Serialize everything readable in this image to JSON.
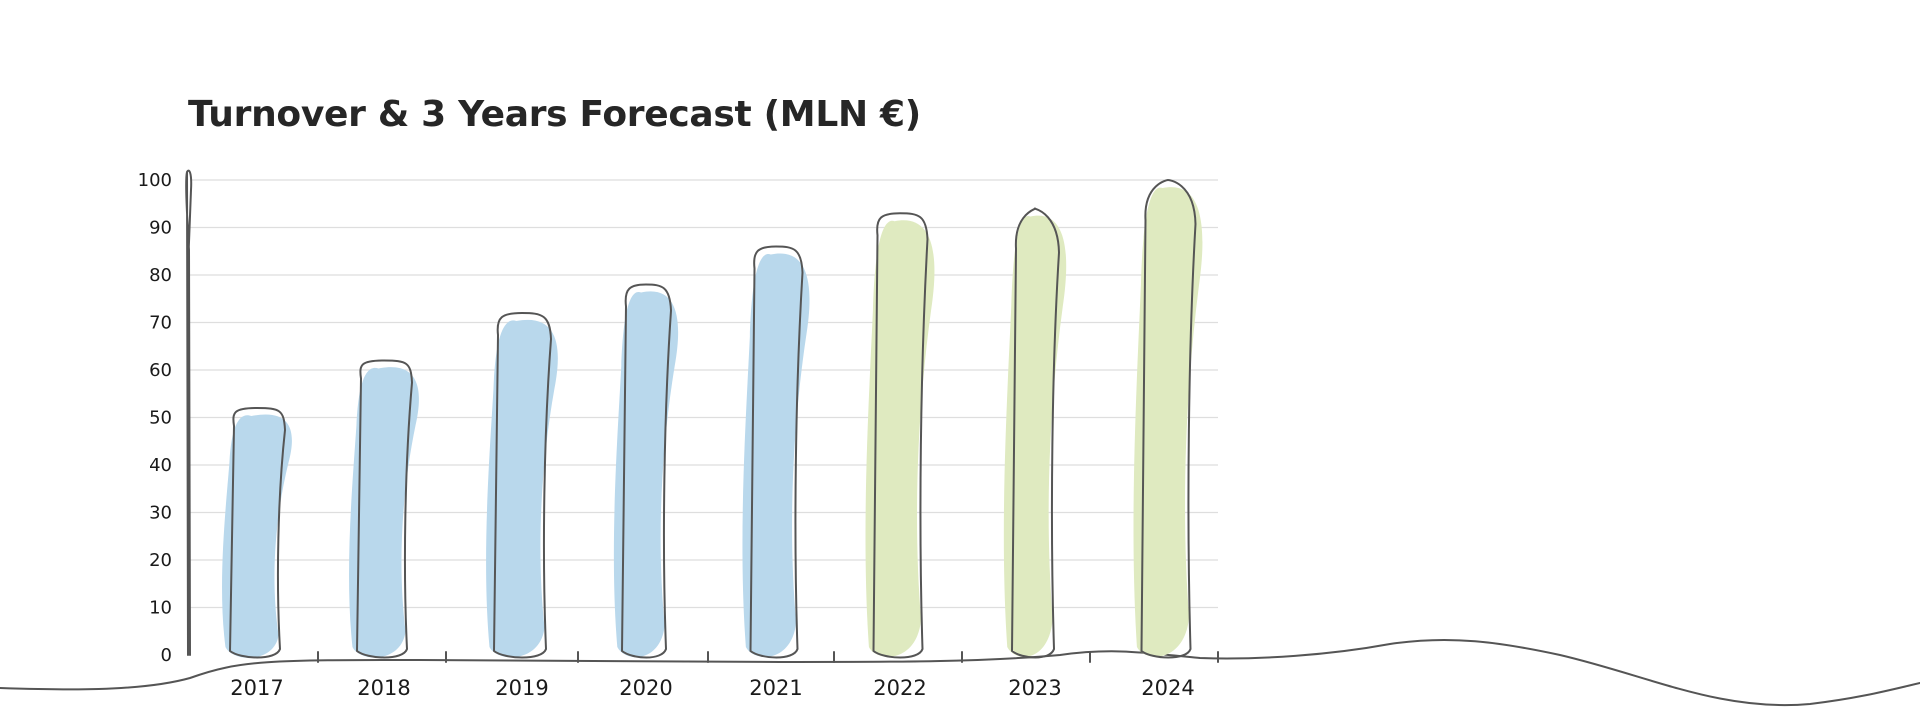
{
  "chart_data": {
    "type": "bar",
    "title": "Turnover & 3 Years Forecast (MLN €)",
    "xlabel": "",
    "ylabel": "",
    "categories": [
      "2017",
      "2018",
      "2019",
      "2020",
      "2021",
      "2022",
      "2023",
      "2024"
    ],
    "values": [
      52,
      62,
      72,
      78,
      86,
      93,
      94,
      100
    ],
    "forecast_from": "2022",
    "ylim": [
      0,
      100
    ],
    "yticks": [
      0,
      10,
      20,
      30,
      40,
      50,
      60,
      70,
      80,
      90,
      100
    ],
    "grid": true,
    "colors": {
      "actual": "#b9d8ec",
      "forecast": "#dfeac0",
      "outline": "#555555"
    }
  }
}
